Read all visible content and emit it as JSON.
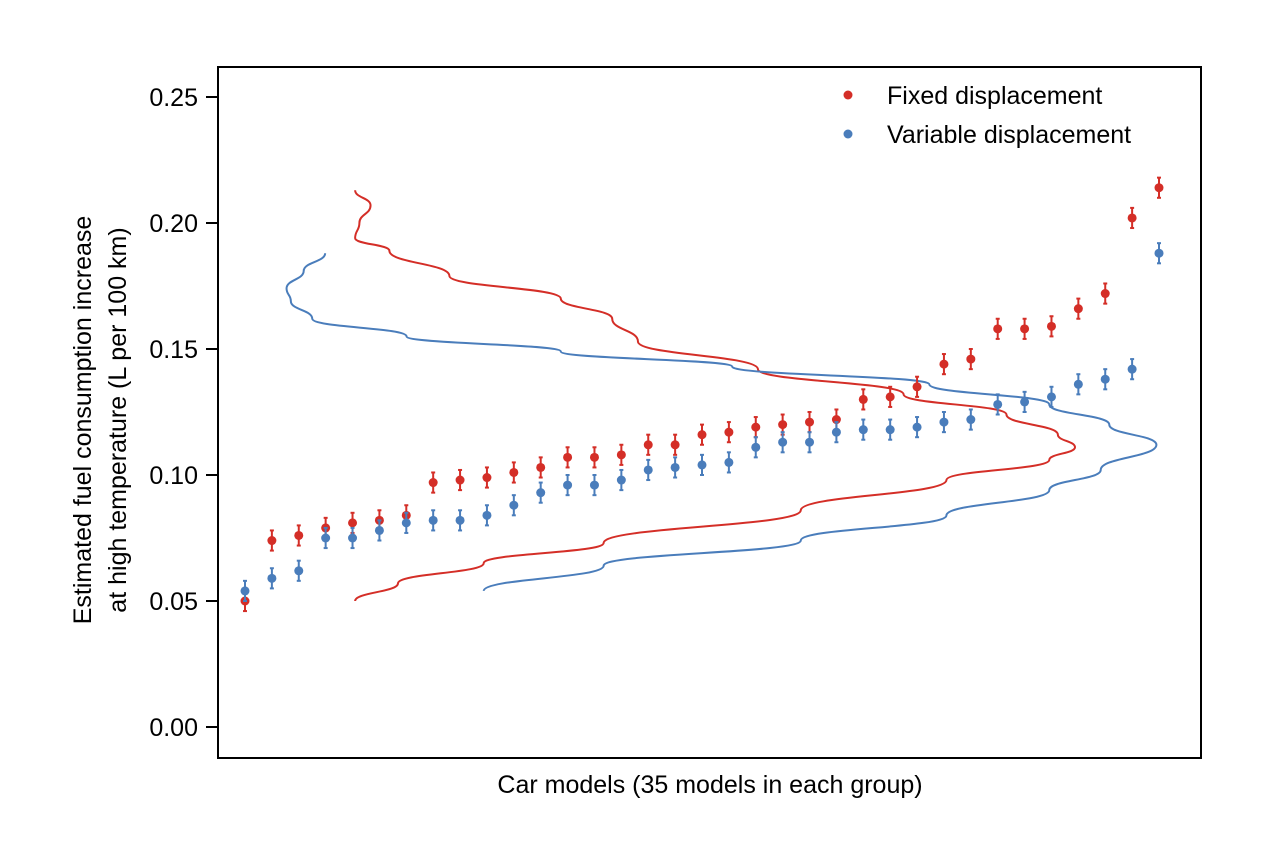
{
  "chart_data": {
    "type": "scatter",
    "title": "",
    "xlabel": "Car models (35 models in each group)",
    "ylabel_line1": "Estimated fuel consumption increase",
    "ylabel_line2": "at high temperature (L per 100 km)",
    "ylim": [
      -0.013,
      0.262
    ],
    "yticks": [
      "0.00",
      "0.05",
      "0.10",
      "0.15",
      "0.20",
      "0.25"
    ],
    "grid": false,
    "legend_position": "top-right",
    "error_halfwidth": 0.004,
    "series": [
      {
        "name": "Fixed displacement",
        "color": "#d42e27",
        "values": [
          0.05,
          0.074,
          0.076,
          0.079,
          0.081,
          0.082,
          0.084,
          0.097,
          0.098,
          0.099,
          0.101,
          0.103,
          0.107,
          0.107,
          0.108,
          0.112,
          0.112,
          0.116,
          0.117,
          0.119,
          0.12,
          0.121,
          0.122,
          0.13,
          0.131,
          0.135,
          0.144,
          0.146,
          0.158,
          0.158,
          0.159,
          0.166,
          0.172,
          0.202,
          0.214
        ],
        "density_curve": [
          [
            0.213,
            0.16
          ],
          [
            0.207,
            0.178
          ],
          [
            0.2,
            0.165
          ],
          [
            0.194,
            0.16
          ],
          [
            0.189,
            0.2
          ],
          [
            0.179,
            0.27
          ],
          [
            0.17,
            0.4
          ],
          [
            0.162,
            0.46
          ],
          [
            0.153,
            0.49
          ],
          [
            0.142,
            0.63
          ],
          [
            0.132,
            0.8
          ],
          [
            0.124,
            0.92
          ],
          [
            0.116,
            0.98
          ],
          [
            0.111,
            1.0
          ],
          [
            0.106,
            0.97
          ],
          [
            0.098,
            0.85
          ],
          [
            0.086,
            0.68
          ],
          [
            0.073,
            0.45
          ],
          [
            0.065,
            0.31
          ],
          [
            0.057,
            0.21
          ],
          [
            0.05,
            0.16
          ]
        ]
      },
      {
        "name": "Variable displacement",
        "color": "#4a7dbb",
        "values": [
          0.054,
          0.059,
          0.062,
          0.075,
          0.075,
          0.078,
          0.081,
          0.082,
          0.082,
          0.084,
          0.088,
          0.093,
          0.096,
          0.096,
          0.098,
          0.102,
          0.103,
          0.104,
          0.105,
          0.111,
          0.113,
          0.113,
          0.117,
          0.118,
          0.118,
          0.119,
          0.121,
          0.122,
          0.128,
          0.129,
          0.131,
          0.136,
          0.138,
          0.142,
          0.188
        ],
        "density_curve": [
          [
            0.188,
            0.125
          ],
          [
            0.181,
            0.1
          ],
          [
            0.174,
            0.08
          ],
          [
            0.169,
            0.085
          ],
          [
            0.162,
            0.11
          ],
          [
            0.155,
            0.22
          ],
          [
            0.149,
            0.4
          ],
          [
            0.143,
            0.6
          ],
          [
            0.136,
            0.83
          ],
          [
            0.128,
            0.97
          ],
          [
            0.12,
            1.04
          ],
          [
            0.112,
            1.095
          ],
          [
            0.102,
            1.03
          ],
          [
            0.094,
            0.97
          ],
          [
            0.084,
            0.85
          ],
          [
            0.074,
            0.68
          ],
          [
            0.064,
            0.45
          ],
          [
            0.054,
            0.31
          ]
        ]
      }
    ]
  }
}
